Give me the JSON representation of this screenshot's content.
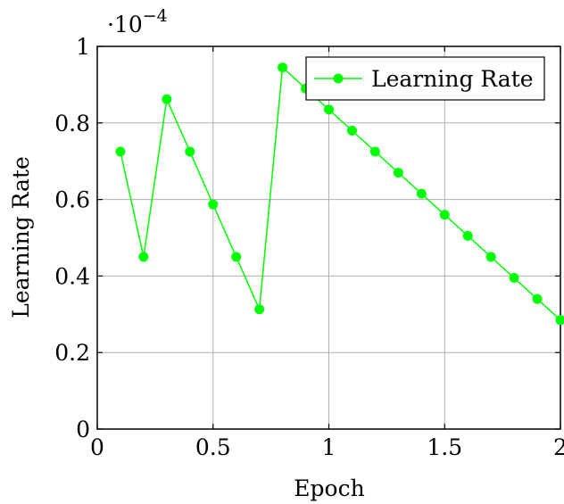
{
  "chart_data": {
    "type": "line",
    "xlabel": "Epoch",
    "ylabel": "Learning Rate",
    "scale_base": "·10",
    "scale_exp": "−4",
    "xlim": [
      0,
      2
    ],
    "ylim": [
      0,
      1
    ],
    "x_ticks": [
      0,
      0.5,
      1,
      1.5,
      2
    ],
    "x_tick_labels": [
      "0",
      "0.5",
      "1",
      "1.5",
      "2"
    ],
    "y_ticks": [
      0,
      0.2,
      0.4,
      0.6,
      0.8,
      1
    ],
    "y_tick_labels": [
      "0",
      "0.2",
      "0.4",
      "0.6",
      "0.8",
      "1"
    ],
    "grid": true,
    "legend_position": "top-right",
    "series": [
      {
        "name": "Learning Rate",
        "color": "#00ff00",
        "x": [
          0.1,
          0.2,
          0.3,
          0.4,
          0.5,
          0.6,
          0.7,
          0.8,
          0.9,
          1.0,
          1.1,
          1.2,
          1.3,
          1.4,
          1.5,
          1.6,
          1.7,
          1.8,
          1.9,
          2.0
        ],
        "y": [
          0.725,
          0.45,
          0.862,
          0.725,
          0.587,
          0.45,
          0.313,
          0.945,
          0.89,
          0.835,
          0.78,
          0.725,
          0.67,
          0.615,
          0.56,
          0.505,
          0.45,
          0.395,
          0.34,
          0.285
        ]
      }
    ]
  }
}
